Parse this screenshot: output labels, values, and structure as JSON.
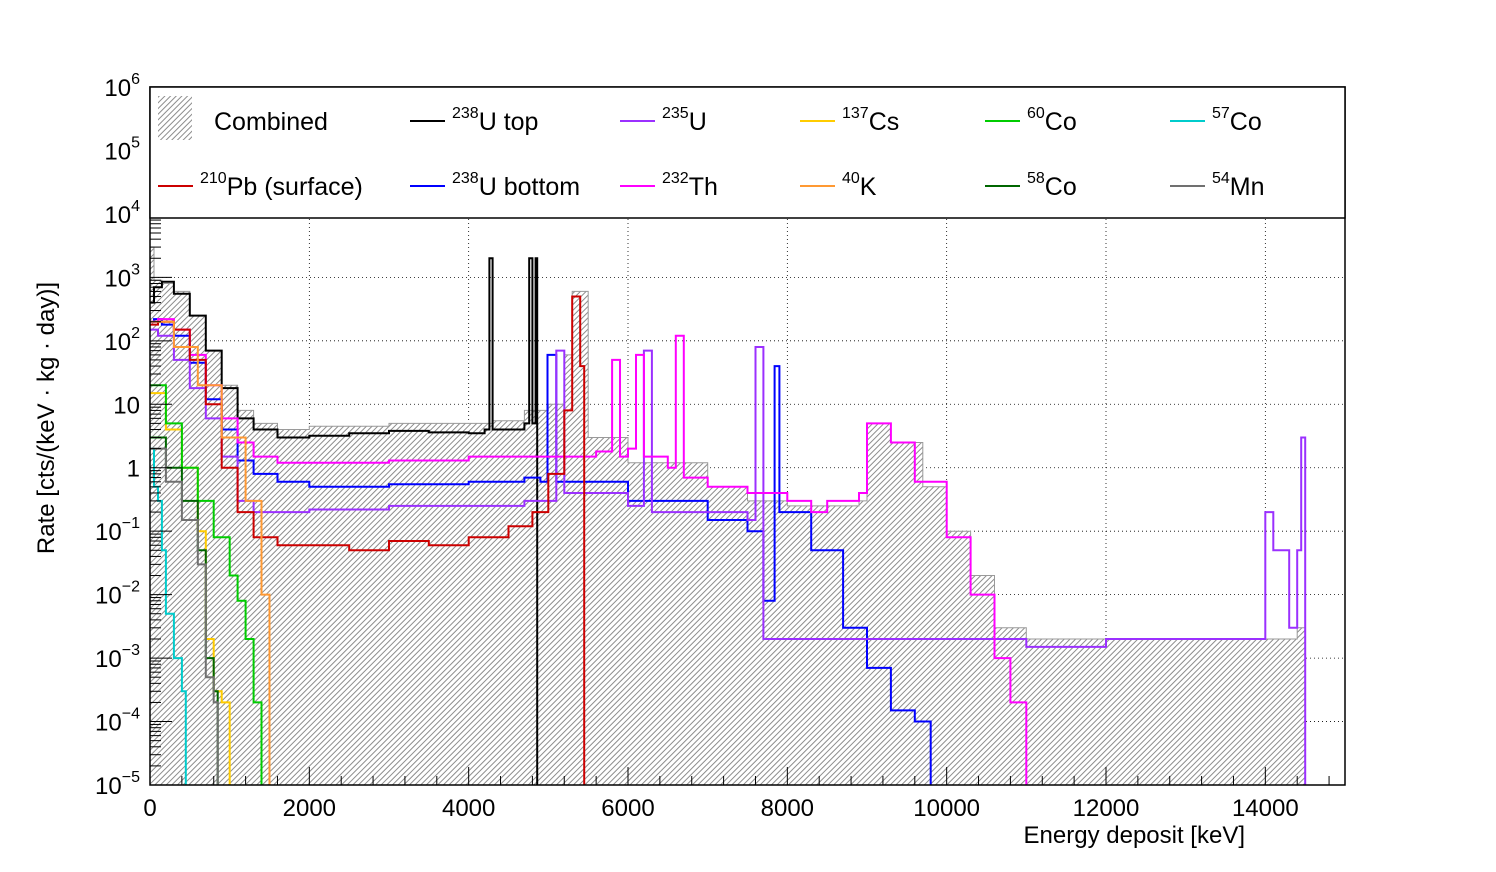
{
  "chart_data": {
    "type": "line",
    "title": "",
    "xlabel": "Energy deposit [keV]",
    "ylabel": "Rate [cts/(keV · kg · day)]",
    "xlim": [
      0,
      15000
    ],
    "ylim": [
      1e-05,
      1000000.0
    ],
    "yscale": "log",
    "grid": true,
    "legend_position": "top",
    "x_ticks": [
      "0",
      "2000",
      "4000",
      "6000",
      "8000",
      "10000",
      "12000",
      "14000"
    ],
    "x_tick_values": [
      0,
      2000,
      4000,
      6000,
      8000,
      10000,
      12000,
      14000
    ],
    "y_ticks": [
      {
        "base": "10",
        "exp": "6"
      },
      {
        "base": "10",
        "exp": "5"
      },
      {
        "base": "10",
        "exp": "4"
      },
      {
        "base": "10",
        "exp": "3"
      },
      {
        "base": "10",
        "exp": "2"
      },
      {
        "base": "10",
        "exp": ""
      },
      {
        "base": "1",
        "exp": ""
      },
      {
        "base": "10",
        "exp": "−1"
      },
      {
        "base": "10",
        "exp": "−2"
      },
      {
        "base": "10",
        "exp": "−3"
      },
      {
        "base": "10",
        "exp": "−4"
      },
      {
        "base": "10",
        "exp": "−5"
      }
    ],
    "y_tick_values": [
      1000000.0,
      100000.0,
      10000.0,
      1000.0,
      100.0,
      10,
      1,
      0.1,
      0.01,
      0.001,
      0.0001,
      1e-05
    ],
    "series": [
      {
        "name": "Combined",
        "iso": "",
        "label": "Combined",
        "color": "#b4b4b4",
        "style": "hatched-fill",
        "points": [
          [
            0,
            3000
          ],
          [
            50,
            900
          ],
          [
            150,
            800
          ],
          [
            300,
            600
          ],
          [
            500,
            250
          ],
          [
            700,
            70
          ],
          [
            900,
            20
          ],
          [
            1100,
            8
          ],
          [
            1300,
            5
          ],
          [
            1600,
            4
          ],
          [
            2000,
            4.5
          ],
          [
            3000,
            5
          ],
          [
            4000,
            5
          ],
          [
            4300,
            5.5
          ],
          [
            4700,
            8
          ],
          [
            5000,
            10
          ],
          [
            5200,
            60
          ],
          [
            5300,
            600
          ],
          [
            5500,
            3
          ],
          [
            6000,
            1.2
          ],
          [
            7000,
            0.5
          ],
          [
            7500,
            0.3
          ],
          [
            8000,
            0.25
          ],
          [
            8500,
            0.25
          ],
          [
            8900,
            0.3
          ],
          [
            9000,
            5
          ],
          [
            9300,
            2.5
          ],
          [
            9700,
            0.5
          ],
          [
            10000,
            0.1
          ],
          [
            10300,
            0.02
          ],
          [
            10600,
            0.003
          ],
          [
            11000,
            0.002
          ],
          [
            12000,
            0.002
          ],
          [
            13000,
            0.002
          ],
          [
            14000,
            0.002
          ],
          [
            14400,
            0.003
          ],
          [
            14500,
            3
          ]
        ]
      },
      {
        "name": "U top",
        "iso": "238",
        "label": "U top",
        "color": "#000000",
        "points": [
          [
            0,
            400
          ],
          [
            50,
            700
          ],
          [
            150,
            850
          ],
          [
            300,
            550
          ],
          [
            500,
            250
          ],
          [
            700,
            70
          ],
          [
            900,
            18
          ],
          [
            1100,
            6
          ],
          [
            1300,
            4
          ],
          [
            1600,
            3
          ],
          [
            2000,
            3.2
          ],
          [
            2500,
            3.5
          ],
          [
            3000,
            3.8
          ],
          [
            3500,
            3.6
          ],
          [
            4000,
            3.5
          ],
          [
            4200,
            4
          ],
          [
            4260,
            2000
          ],
          [
            4300,
            4
          ],
          [
            4700,
            5
          ],
          [
            4760,
            2000
          ],
          [
            4800,
            5
          ],
          [
            4840,
            2000
          ],
          [
            4860,
            1e-05
          ]
        ]
      },
      {
        "name": "U bottom",
        "iso": "238",
        "label": "U bottom",
        "color": "#0000ff",
        "points": [
          [
            0,
            200
          ],
          [
            50,
            220
          ],
          [
            150,
            180
          ],
          [
            300,
            120
          ],
          [
            500,
            45
          ],
          [
            700,
            12
          ],
          [
            900,
            4
          ],
          [
            1100,
            1.3
          ],
          [
            1300,
            0.8
          ],
          [
            1600,
            0.6
          ],
          [
            2000,
            0.5
          ],
          [
            3000,
            0.55
          ],
          [
            4000,
            0.6
          ],
          [
            4700,
            0.7
          ],
          [
            4900,
            0.6
          ],
          [
            4990,
            60
          ],
          [
            5100,
            0.6
          ],
          [
            6000,
            0.3
          ],
          [
            7000,
            0.15
          ],
          [
            7500,
            0.1
          ],
          [
            7700,
            0.008
          ],
          [
            7800,
            0.008
          ],
          [
            7840,
            40
          ],
          [
            7900,
            0.2
          ],
          [
            8300,
            0.05
          ],
          [
            8700,
            0.003
          ],
          [
            9000,
            0.0007
          ],
          [
            9300,
            0.00015
          ],
          [
            9600,
            0.0001
          ],
          [
            9800,
            1e-05
          ]
        ]
      },
      {
        "name": "U",
        "iso": "235",
        "label": "U",
        "color": "#9b30ff",
        "points": [
          [
            0,
            150
          ],
          [
            100,
            120
          ],
          [
            300,
            50
          ],
          [
            500,
            18
          ],
          [
            700,
            6
          ],
          [
            900,
            1.5
          ],
          [
            1100,
            0.3
          ],
          [
            1300,
            0.2
          ],
          [
            1600,
            0.2
          ],
          [
            2000,
            0.22
          ],
          [
            3000,
            0.25
          ],
          [
            4000,
            0.25
          ],
          [
            4700,
            0.3
          ],
          [
            5000,
            0.3
          ],
          [
            5100,
            70
          ],
          [
            5200,
            0.4
          ],
          [
            6000,
            0.25
          ],
          [
            6200,
            70
          ],
          [
            6300,
            0.2
          ],
          [
            7000,
            0.2
          ],
          [
            7500,
            0.15
          ],
          [
            7600,
            80
          ],
          [
            7700,
            0.002
          ],
          [
            8000,
            0.002
          ],
          [
            9000,
            0.002
          ],
          [
            10000,
            0.002
          ],
          [
            11000,
            0.0015
          ],
          [
            12000,
            0.002
          ],
          [
            13000,
            0.002
          ],
          [
            13500,
            0.002
          ],
          [
            14000,
            0.2
          ],
          [
            14100,
            0.05
          ],
          [
            14300,
            0.003
          ],
          [
            14400,
            0.05
          ],
          [
            14450,
            3
          ],
          [
            14500,
            1e-05
          ]
        ]
      },
      {
        "name": "Th",
        "iso": "232",
        "label": "Th",
        "color": "#ff00ff",
        "points": [
          [
            0,
            200
          ],
          [
            100,
            220
          ],
          [
            300,
            150
          ],
          [
            500,
            60
          ],
          [
            700,
            20
          ],
          [
            900,
            6
          ],
          [
            1100,
            2.5
          ],
          [
            1300,
            1.5
          ],
          [
            1600,
            1.2
          ],
          [
            2000,
            1.2
          ],
          [
            3000,
            1.3
          ],
          [
            4000,
            1.5
          ],
          [
            4600,
            1.5
          ],
          [
            5000,
            1.5
          ],
          [
            5600,
            1.8
          ],
          [
            5800,
            50
          ],
          [
            5900,
            1.5
          ],
          [
            6000,
            2
          ],
          [
            6100,
            60
          ],
          [
            6200,
            1.5
          ],
          [
            6500,
            1
          ],
          [
            6600,
            120
          ],
          [
            6700,
            0.7
          ],
          [
            7000,
            0.5
          ],
          [
            7500,
            0.4
          ],
          [
            8000,
            0.3
          ],
          [
            8300,
            0.2
          ],
          [
            8500,
            0.3
          ],
          [
            8900,
            0.4
          ],
          [
            9000,
            5
          ],
          [
            9300,
            2.5
          ],
          [
            9600,
            0.6
          ],
          [
            10000,
            0.08
          ],
          [
            10300,
            0.01
          ],
          [
            10600,
            0.001
          ],
          [
            10800,
            0.0002
          ],
          [
            11000,
            1e-05
          ]
        ]
      },
      {
        "name": "Pb (surface)",
        "iso": "210",
        "label": "Pb (surface)",
        "color": "#cc0000",
        "points": [
          [
            0,
            180
          ],
          [
            100,
            200
          ],
          [
            300,
            150
          ],
          [
            500,
            50
          ],
          [
            700,
            10
          ],
          [
            900,
            1
          ],
          [
            1100,
            0.2
          ],
          [
            1300,
            0.08
          ],
          [
            1600,
            0.06
          ],
          [
            2000,
            0.06
          ],
          [
            2500,
            0.05
          ],
          [
            3000,
            0.07
          ],
          [
            3500,
            0.06
          ],
          [
            4000,
            0.08
          ],
          [
            4500,
            0.12
          ],
          [
            4800,
            0.2
          ],
          [
            5000,
            0.8
          ],
          [
            5200,
            8
          ],
          [
            5300,
            500
          ],
          [
            5400,
            40
          ],
          [
            5450,
            1e-05
          ]
        ]
      },
      {
        "name": "Cs",
        "iso": "137",
        "label": "Cs",
        "color": "#ffcc00",
        "points": [
          [
            0,
            15
          ],
          [
            200,
            4
          ],
          [
            400,
            1
          ],
          [
            600,
            0.1
          ],
          [
            700,
            0.002
          ],
          [
            800,
            0.0003
          ],
          [
            900,
            0.0002
          ],
          [
            1000,
            1e-05
          ]
        ]
      },
      {
        "name": "K",
        "iso": "40",
        "label": "K",
        "color": "#ff9933",
        "points": [
          [
            0,
            200
          ],
          [
            300,
            80
          ],
          [
            600,
            20
          ],
          [
            900,
            3
          ],
          [
            1200,
            0.3
          ],
          [
            1400,
            0.01
          ],
          [
            1460,
            0.01
          ],
          [
            1500,
            1e-05
          ]
        ]
      },
      {
        "name": "Co",
        "iso": "60",
        "label": "Co",
        "color": "#00cc00",
        "points": [
          [
            0,
            20
          ],
          [
            200,
            5
          ],
          [
            400,
            1
          ],
          [
            600,
            0.3
          ],
          [
            800,
            0.08
          ],
          [
            1000,
            0.02
          ],
          [
            1100,
            0.008
          ],
          [
            1200,
            0.002
          ],
          [
            1300,
            0.0002
          ],
          [
            1400,
            1e-05
          ]
        ]
      },
      {
        "name": "Co",
        "iso": "58",
        "label": "Co",
        "color": "#006600",
        "points": [
          [
            0,
            3
          ],
          [
            200,
            1
          ],
          [
            400,
            0.3
          ],
          [
            600,
            0.05
          ],
          [
            700,
            0.001
          ],
          [
            800,
            0.0003
          ],
          [
            850,
            1e-05
          ]
        ]
      },
      {
        "name": "Co",
        "iso": "57",
        "label": "Co",
        "color": "#00cccc",
        "points": [
          [
            0,
            2
          ],
          [
            50,
            0.5
          ],
          [
            100,
            0.3
          ],
          [
            150,
            0.05
          ],
          [
            200,
            0.005
          ],
          [
            300,
            0.001
          ],
          [
            400,
            0.0003
          ],
          [
            450,
            1e-05
          ]
        ]
      },
      {
        "name": "Mn",
        "iso": "54",
        "label": "Mn",
        "color": "#707070",
        "points": [
          [
            0,
            2
          ],
          [
            200,
            0.6
          ],
          [
            400,
            0.15
          ],
          [
            600,
            0.03
          ],
          [
            700,
            0.0005
          ],
          [
            800,
            0.0002
          ],
          [
            850,
            1e-05
          ]
        ]
      }
    ],
    "legend_order": [
      0,
      1,
      3,
      6,
      8,
      10,
      5,
      2,
      4,
      7,
      9,
      11
    ]
  }
}
